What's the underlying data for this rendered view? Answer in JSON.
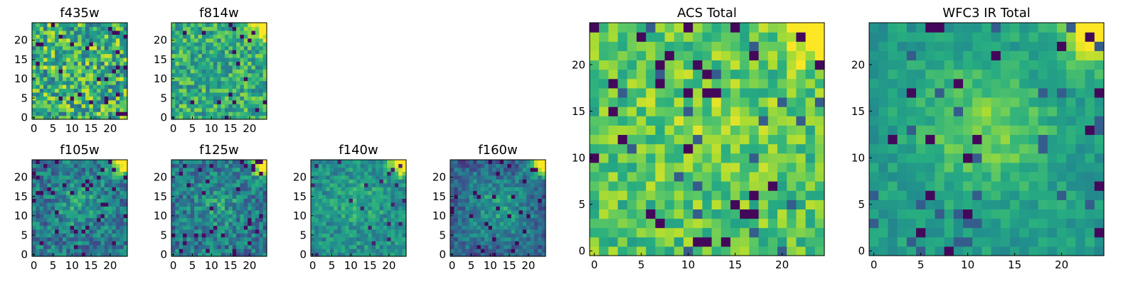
{
  "chart_data": [
    {
      "type": "heatmap",
      "title": "f435w",
      "grid_size": 25,
      "xlim": [
        0,
        25
      ],
      "ylim": [
        0,
        25
      ],
      "xticks": [
        0,
        5,
        10,
        15,
        20
      ],
      "yticks": [
        0,
        5,
        10,
        15,
        20
      ],
      "colormap": "viridis",
      "pattern": "noise"
    },
    {
      "type": "heatmap",
      "title": "f814w",
      "grid_size": 25,
      "xlim": [
        0,
        25
      ],
      "ylim": [
        0,
        25
      ],
      "xticks": [
        0,
        5,
        10,
        15,
        20
      ],
      "yticks": [
        0,
        5,
        10,
        15,
        20
      ],
      "colormap": "viridis",
      "pattern": "noise-bright-corner"
    },
    {
      "type": "heatmap",
      "title": "f105w",
      "grid_size": 25,
      "xlim": [
        0,
        25
      ],
      "ylim": [
        0,
        25
      ],
      "xticks": [
        0,
        5,
        10,
        15,
        20
      ],
      "yticks": [
        0,
        5,
        10,
        15,
        20
      ],
      "colormap": "viridis",
      "pattern": "dark-bright-corner"
    },
    {
      "type": "heatmap",
      "title": "f125w",
      "grid_size": 25,
      "xlim": [
        0,
        25
      ],
      "ylim": [
        0,
        25
      ],
      "xticks": [
        0,
        5,
        10,
        15,
        20
      ],
      "yticks": [
        0,
        5,
        10,
        15,
        20
      ],
      "colormap": "viridis",
      "pattern": "dark-bright-corner"
    },
    {
      "type": "heatmap",
      "title": "f140w",
      "grid_size": 25,
      "xlim": [
        0,
        25
      ],
      "ylim": [
        0,
        25
      ],
      "xticks": [
        0,
        5,
        10,
        15,
        20
      ],
      "yticks": [
        0,
        5,
        10,
        15,
        20
      ],
      "colormap": "viridis",
      "pattern": "mid-bright-corner"
    },
    {
      "type": "heatmap",
      "title": "f160w",
      "grid_size": 25,
      "xlim": [
        0,
        25
      ],
      "ylim": [
        0,
        25
      ],
      "xticks": [
        0,
        5,
        10,
        15,
        20
      ],
      "yticks": [
        0,
        5,
        10,
        15,
        20
      ],
      "colormap": "viridis",
      "pattern": "dark-edges-bright-corner"
    },
    {
      "type": "heatmap",
      "title": "ACS Total",
      "grid_size": 25,
      "xlim": [
        0,
        25
      ],
      "ylim": [
        0,
        25
      ],
      "xticks": [
        0,
        5,
        10,
        15,
        20
      ],
      "yticks": [
        0,
        5,
        10,
        15,
        20
      ],
      "colormap": "viridis",
      "pattern": "green-noise-bright-corner"
    },
    {
      "type": "heatmap",
      "title": "WFC3 IR Total",
      "grid_size": 25,
      "xlim": [
        0,
        25
      ],
      "ylim": [
        0,
        25
      ],
      "xticks": [
        0,
        5,
        10,
        15,
        20
      ],
      "yticks": [
        0,
        5,
        10,
        15,
        20
      ],
      "colormap": "viridis",
      "pattern": "teal-bright-center-corner"
    }
  ]
}
